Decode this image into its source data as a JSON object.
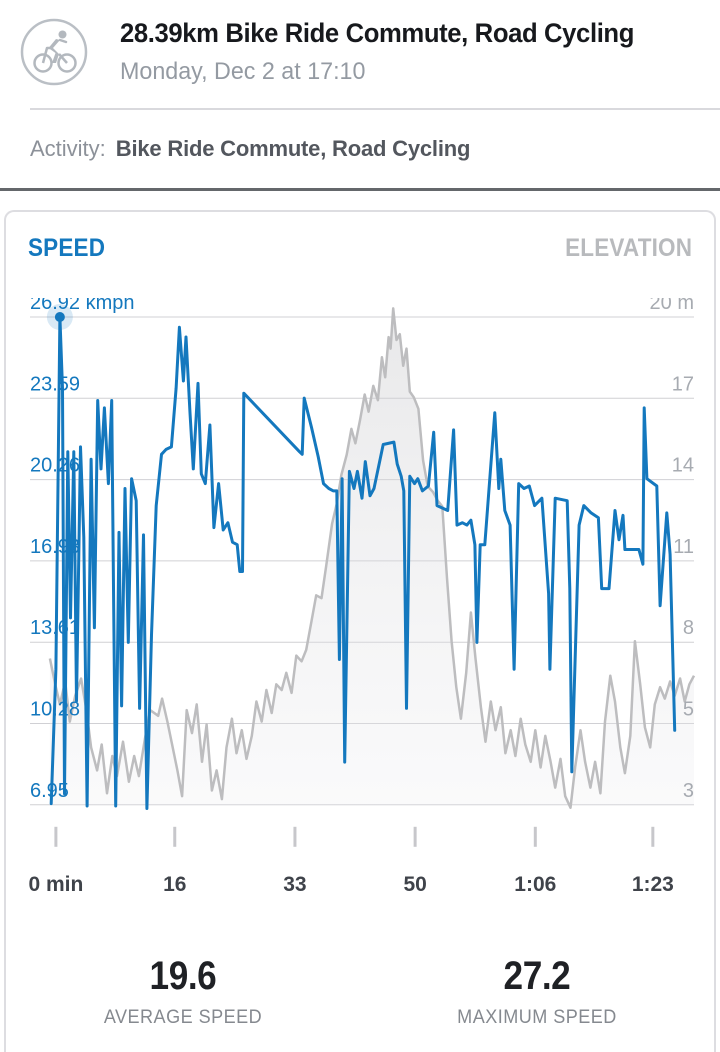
{
  "header": {
    "title": "28.39km Bike Ride Commute, Road Cycling",
    "datetime": "Monday, Dec 2 at 17:10"
  },
  "activity": {
    "label": "Activity:",
    "value": "Bike Ride Commute, Road Cycling"
  },
  "chart": {
    "tabs": [
      "SPEED",
      "ELEVATION"
    ]
  },
  "stats": [
    {
      "value": "19.6",
      "label": "AVERAGE SPEED"
    },
    {
      "value": "27.2",
      "label": "MAXIMUM SPEED"
    }
  ],
  "colors": {
    "speed_blue": "#1478be",
    "elevation_gray": "#bdbdbf",
    "grid": "#d0d0d4",
    "axis_right_text": "#a7abb1",
    "x_label_text": "#3f434a",
    "tick_mark": "#c7c7cb",
    "marker_halo": "rgba(20,120,190,0.16)"
  },
  "chart_data": {
    "type": "line",
    "title": "SPEED",
    "secondary_title": "ELEVATION",
    "grid": true,
    "x_axis": {
      "unit": "min",
      "tick_labels": [
        "0 min",
        "16",
        "33",
        "50",
        "1:06",
        "1:23"
      ],
      "tick_positions_pct": [
        3.9,
        21.8,
        39.9,
        58.0,
        76.1,
        93.8
      ]
    },
    "y_axis_left": {
      "unit": "kmph",
      "labels": [
        "26.92 kmph",
        "23.59",
        "20.26",
        "16.93",
        "13.61",
        "10.28",
        "6.95"
      ],
      "values": [
        26.92,
        23.59,
        20.26,
        16.93,
        13.61,
        10.28,
        6.95
      ],
      "range": [
        6.95,
        26.92
      ]
    },
    "y_axis_right": {
      "unit": "m",
      "labels": [
        "20 m",
        "17",
        "14",
        "11",
        "8",
        "5",
        "3"
      ],
      "values": [
        20,
        17,
        14,
        11,
        8,
        5,
        3
      ],
      "range": [
        3,
        20
      ]
    },
    "marker": {
      "x_pct": 4.5,
      "value": 26.92,
      "label": "26.92 kmph"
    },
    "series": [
      {
        "name": "speed",
        "unit": "kmph",
        "color": "#1478be",
        "points": [
          [
            3.2,
            7.0
          ],
          [
            3.9,
            12.5
          ],
          [
            4.5,
            26.92
          ],
          [
            4.9,
            24.0
          ],
          [
            5.2,
            7.4
          ],
          [
            5.7,
            21.4
          ],
          [
            6.1,
            14.6
          ],
          [
            6.6,
            21.4
          ],
          [
            7.0,
            11.2
          ],
          [
            7.6,
            21.6
          ],
          [
            8.1,
            17.9
          ],
          [
            8.6,
            6.9
          ],
          [
            9.2,
            21.1
          ],
          [
            9.7,
            14.2
          ],
          [
            10.2,
            23.5
          ],
          [
            10.7,
            20.7
          ],
          [
            11.2,
            23.2
          ],
          [
            11.8,
            20.1
          ],
          [
            12.3,
            23.5
          ],
          [
            12.6,
            15.0
          ],
          [
            12.9,
            6.9
          ],
          [
            13.4,
            18.1
          ],
          [
            13.8,
            11.0
          ],
          [
            14.3,
            19.9
          ],
          [
            14.8,
            13.6
          ],
          [
            15.3,
            20.3
          ],
          [
            16.0,
            19.4
          ],
          [
            16.5,
            10.9
          ],
          [
            17.1,
            18.0
          ],
          [
            17.6,
            6.8
          ],
          [
            18.3,
            13.9
          ],
          [
            19.0,
            19.2
          ],
          [
            19.8,
            21.3
          ],
          [
            20.5,
            21.5
          ],
          [
            21.3,
            21.6
          ],
          [
            22.0,
            24.0
          ],
          [
            22.5,
            26.5
          ],
          [
            23.1,
            24.3
          ],
          [
            23.5,
            26.1
          ],
          [
            24.1,
            23.0
          ],
          [
            24.6,
            20.7
          ],
          [
            25.3,
            24.2
          ],
          [
            25.8,
            20.5
          ],
          [
            26.4,
            20.1
          ],
          [
            27.1,
            22.5
          ],
          [
            27.7,
            18.3
          ],
          [
            28.4,
            20.1
          ],
          [
            29.1,
            18.2
          ],
          [
            29.8,
            18.5
          ],
          [
            30.5,
            17.7
          ],
          [
            31.2,
            17.6
          ],
          [
            31.6,
            16.5
          ],
          [
            32.0,
            16.5
          ],
          [
            32.2,
            23.8
          ],
          [
            40.6,
            21.4
          ],
          [
            41.0,
            21.3
          ],
          [
            41.3,
            23.6
          ],
          [
            42.4,
            22.4
          ],
          [
            43.4,
            21.2
          ],
          [
            44.2,
            20.1
          ],
          [
            45.0,
            19.9
          ],
          [
            45.7,
            19.8
          ],
          [
            46.2,
            19.8
          ],
          [
            46.6,
            12.9
          ],
          [
            47.0,
            20.3
          ],
          [
            47.4,
            8.7
          ],
          [
            48.1,
            20.6
          ],
          [
            48.8,
            19.9
          ],
          [
            49.3,
            20.6
          ],
          [
            50.0,
            19.5
          ],
          [
            50.5,
            21.0
          ],
          [
            51.2,
            19.6
          ],
          [
            51.8,
            19.9
          ],
          [
            53.2,
            21.7
          ],
          [
            54.8,
            21.8
          ],
          [
            55.3,
            20.9
          ],
          [
            55.9,
            20.4
          ],
          [
            56.3,
            19.8
          ],
          [
            56.7,
            10.9
          ],
          [
            57.2,
            20.4
          ],
          [
            57.9,
            20.1
          ],
          [
            58.4,
            20.3
          ],
          [
            59.1,
            19.8
          ],
          [
            60.0,
            20.0
          ],
          [
            60.8,
            22.2
          ],
          [
            61.3,
            19.2
          ],
          [
            62.1,
            19.1
          ],
          [
            62.9,
            19.0
          ],
          [
            63.8,
            22.3
          ],
          [
            64.3,
            18.4
          ],
          [
            65.1,
            18.5
          ],
          [
            65.8,
            18.4
          ],
          [
            66.4,
            18.6
          ],
          [
            67.0,
            17.6
          ],
          [
            67.3,
            13.6
          ],
          [
            67.8,
            17.6
          ],
          [
            68.5,
            17.6
          ],
          [
            70.0,
            23.0
          ],
          [
            70.6,
            19.9
          ],
          [
            70.9,
            21.1
          ],
          [
            71.5,
            19.0
          ],
          [
            72.3,
            18.4
          ],
          [
            72.9,
            12.5
          ],
          [
            73.6,
            20.1
          ],
          [
            74.4,
            19.9
          ],
          [
            75.2,
            20.0
          ],
          [
            76.0,
            19.2
          ],
          [
            77.1,
            19.5
          ],
          [
            78.1,
            15.6
          ],
          [
            78.3,
            12.5
          ],
          [
            79.1,
            19.5
          ],
          [
            80.9,
            19.4
          ],
          [
            81.3,
            15.8
          ],
          [
            81.6,
            8.3
          ],
          [
            82.7,
            18.4
          ],
          [
            83.4,
            19.2
          ],
          [
            84.5,
            18.9
          ],
          [
            85.6,
            18.7
          ],
          [
            86.1,
            15.8
          ],
          [
            87.2,
            15.8
          ],
          [
            88.1,
            19.0
          ],
          [
            88.7,
            17.8
          ],
          [
            89.3,
            18.8
          ],
          [
            89.6,
            17.4
          ],
          [
            91.7,
            17.4
          ],
          [
            92.3,
            16.8
          ],
          [
            92.5,
            23.2
          ],
          [
            92.9,
            20.3
          ],
          [
            94.4,
            20.0
          ],
          [
            94.9,
            15.1
          ],
          [
            95.9,
            18.9
          ],
          [
            96.4,
            17.2
          ],
          [
            97.1,
            10.0
          ]
        ]
      },
      {
        "name": "elevation",
        "unit": "m",
        "color": "#bdbdbf",
        "fill": true,
        "points": [
          [
            3.0,
            8.1
          ],
          [
            3.8,
            7.2
          ],
          [
            4.5,
            6.5
          ],
          [
            5.3,
            7.3
          ],
          [
            6.0,
            5.9
          ],
          [
            6.8,
            6.8
          ],
          [
            7.7,
            7.4
          ],
          [
            8.5,
            6.3
          ],
          [
            9.2,
            5.0
          ],
          [
            10.1,
            4.2
          ],
          [
            10.8,
            5.1
          ],
          [
            11.6,
            3.4
          ],
          [
            12.4,
            4.7
          ],
          [
            13.1,
            4.0
          ],
          [
            14.0,
            5.2
          ],
          [
            14.9,
            3.8
          ],
          [
            15.7,
            4.7
          ],
          [
            16.4,
            4.0
          ],
          [
            17.3,
            5.3
          ],
          [
            18.1,
            6.3
          ],
          [
            19.3,
            6.1
          ],
          [
            19.9,
            6.7
          ],
          [
            20.7,
            5.9
          ],
          [
            21.4,
            5.1
          ],
          [
            22.2,
            4.2
          ],
          [
            22.9,
            3.3
          ],
          [
            23.6,
            6.3
          ],
          [
            24.4,
            5.5
          ],
          [
            25.1,
            6.5
          ],
          [
            25.9,
            4.5
          ],
          [
            26.6,
            5.8
          ],
          [
            27.4,
            3.5
          ],
          [
            28.1,
            4.2
          ],
          [
            28.9,
            3.2
          ],
          [
            29.6,
            5.0
          ],
          [
            30.4,
            6.0
          ],
          [
            31.1,
            4.8
          ],
          [
            31.9,
            5.6
          ],
          [
            32.6,
            4.6
          ],
          [
            33.4,
            5.4
          ],
          [
            34.1,
            6.6
          ],
          [
            34.9,
            5.9
          ],
          [
            35.6,
            7.0
          ],
          [
            36.4,
            6.2
          ],
          [
            37.1,
            7.2
          ],
          [
            37.9,
            7.0
          ],
          [
            38.6,
            7.6
          ],
          [
            39.4,
            6.9
          ],
          [
            40.1,
            8.2
          ],
          [
            40.9,
            8.0
          ],
          [
            41.6,
            8.4
          ],
          [
            42.4,
            9.4
          ],
          [
            43.1,
            10.3
          ],
          [
            43.9,
            10.2
          ],
          [
            44.6,
            11.3
          ],
          [
            45.5,
            12.8
          ],
          [
            46.2,
            13.5
          ],
          [
            46.9,
            14.5
          ],
          [
            47.7,
            15.2
          ],
          [
            48.4,
            16.1
          ],
          [
            49.0,
            15.6
          ],
          [
            49.7,
            16.4
          ],
          [
            50.4,
            17.3
          ],
          [
            51.0,
            16.7
          ],
          [
            51.7,
            17.6
          ],
          [
            52.4,
            17.1
          ],
          [
            53.0,
            18.6
          ],
          [
            53.5,
            17.9
          ],
          [
            54.0,
            19.3
          ],
          [
            54.3,
            18.9
          ],
          [
            54.7,
            20.3
          ],
          [
            55.2,
            19.2
          ],
          [
            55.7,
            19.4
          ],
          [
            56.2,
            18.3
          ],
          [
            56.7,
            18.9
          ],
          [
            57.2,
            17.4
          ],
          [
            57.8,
            17.2
          ],
          [
            58.5,
            16.8
          ],
          [
            59.2,
            15.0
          ],
          [
            59.9,
            14.1
          ],
          [
            60.7,
            13.9
          ],
          [
            61.4,
            13.6
          ],
          [
            62.1,
            13.4
          ],
          [
            62.8,
            10.9
          ],
          [
            63.5,
            8.7
          ],
          [
            64.2,
            7.1
          ],
          [
            64.9,
            6.0
          ],
          [
            65.7,
            7.6
          ],
          [
            66.4,
            9.7
          ],
          [
            67.1,
            8.1
          ],
          [
            67.9,
            6.4
          ],
          [
            68.6,
            5.2
          ],
          [
            69.4,
            6.6
          ],
          [
            70.1,
            5.6
          ],
          [
            70.9,
            6.4
          ],
          [
            71.6,
            4.8
          ],
          [
            72.4,
            5.6
          ],
          [
            73.1,
            4.7
          ],
          [
            73.9,
            6.0
          ],
          [
            74.6,
            5.1
          ],
          [
            75.4,
            4.5
          ],
          [
            76.1,
            5.6
          ],
          [
            76.9,
            4.3
          ],
          [
            77.6,
            5.4
          ],
          [
            78.4,
            4.5
          ],
          [
            79.1,
            3.6
          ],
          [
            79.9,
            4.6
          ],
          [
            80.6,
            3.3
          ],
          [
            81.4,
            2.9
          ],
          [
            82.1,
            4.3
          ],
          [
            82.9,
            5.6
          ],
          [
            83.6,
            4.5
          ],
          [
            84.4,
            3.6
          ],
          [
            85.1,
            4.5
          ],
          [
            85.9,
            3.4
          ],
          [
            86.6,
            5.9
          ],
          [
            87.4,
            7.5
          ],
          [
            88.1,
            6.6
          ],
          [
            88.9,
            5.0
          ],
          [
            89.6,
            4.1
          ],
          [
            90.4,
            5.4
          ],
          [
            91.1,
            8.7
          ],
          [
            91.9,
            7.2
          ],
          [
            92.6,
            5.7
          ],
          [
            93.4,
            5.0
          ],
          [
            94.1,
            6.5
          ],
          [
            94.9,
            7.1
          ],
          [
            95.6,
            6.7
          ],
          [
            96.4,
            7.3
          ],
          [
            97.1,
            6.8
          ],
          [
            97.9,
            7.4
          ],
          [
            98.6,
            6.6
          ],
          [
            99.3,
            7.2
          ],
          [
            100,
            7.5
          ]
        ]
      }
    ]
  }
}
